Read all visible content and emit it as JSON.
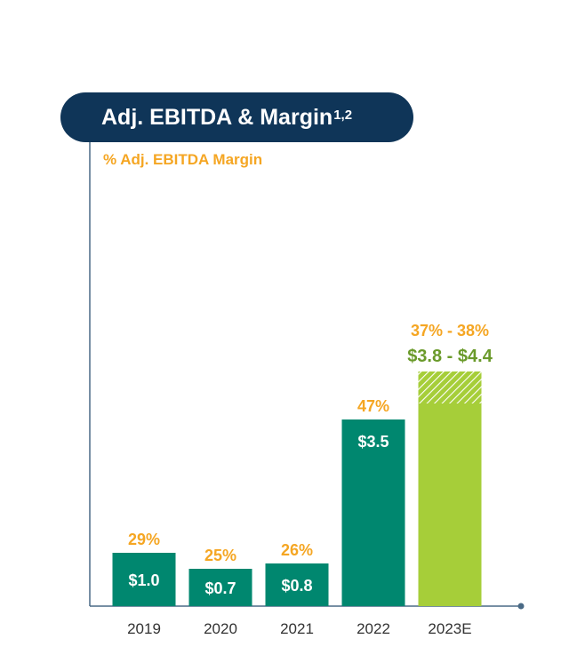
{
  "header": {
    "title": "Adj. EBITDA & Margin",
    "title_superscript": "1,2",
    "legend_label": "% Adj. EBITDA Margin"
  },
  "colors": {
    "title_bg": "#0f3558",
    "bar_actual": "#00876f",
    "bar_estimate": "#a6ce39",
    "margin_text": "#f5a623",
    "estimate_value_text": "#6a9a2a",
    "axis": "#4a6a86"
  },
  "chart_data": {
    "type": "bar",
    "title": "Adj. EBITDA & Margin",
    "categories": [
      "2019",
      "2020",
      "2021",
      "2022",
      "2023E"
    ],
    "values": [
      1.0,
      0.7,
      0.8,
      3.5,
      3.8
    ],
    "value_labels": [
      "$1.0",
      "$0.7",
      "$0.8",
      "$3.5",
      "$3.8 - $4.4"
    ],
    "estimate_range": {
      "category": "2023E",
      "low": 3.8,
      "high": 4.4
    },
    "margin_labels": [
      "29%",
      "25%",
      "26%",
      "47%",
      "37% - 38%"
    ],
    "ylim": [
      0,
      5.6
    ],
    "grid": false,
    "legend": "top-left"
  }
}
